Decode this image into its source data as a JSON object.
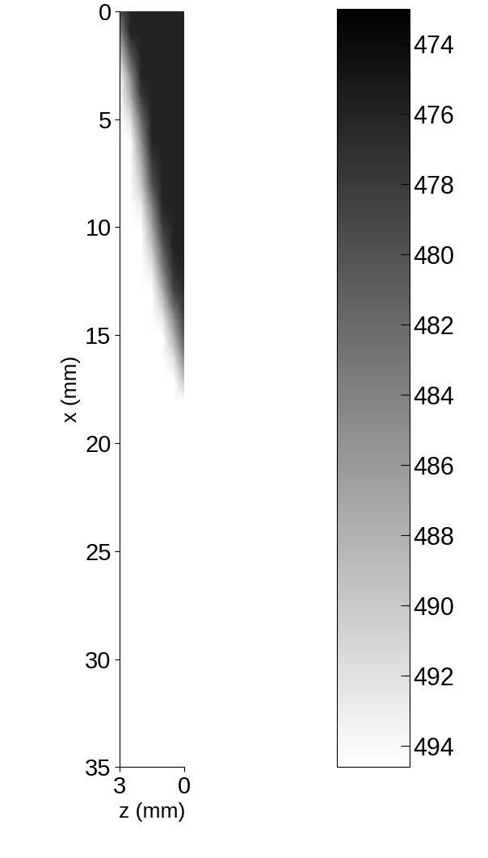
{
  "chart_data": {
    "type": "heatmap",
    "x_label": "z (mm)",
    "y_label": "x (mm)",
    "x": [
      0,
      0.5,
      1,
      1.5,
      2,
      2.5,
      3
    ],
    "y": [
      0,
      1,
      2,
      3,
      4,
      5,
      6,
      7,
      8,
      9,
      10,
      11,
      12,
      13,
      14,
      15,
      16,
      17,
      18,
      19,
      20,
      21,
      22,
      23,
      24,
      25,
      26,
      27,
      28,
      29,
      30,
      31,
      32,
      33,
      34,
      35
    ],
    "cells": [
      [
        476,
        476,
        476,
        476,
        476,
        476,
        480
      ],
      [
        476,
        476,
        476,
        476,
        476,
        476,
        485
      ],
      [
        476,
        476,
        476,
        476,
        476,
        480,
        490
      ],
      [
        476,
        476,
        476,
        476,
        476,
        485,
        495
      ],
      [
        476,
        476,
        476,
        476,
        478,
        488,
        495
      ],
      [
        476,
        476,
        476,
        476,
        482,
        492,
        495
      ],
      [
        476,
        476,
        476,
        476,
        485,
        495,
        495
      ],
      [
        476,
        476,
        476,
        478,
        488,
        495,
        495
      ],
      [
        476,
        476,
        476,
        480,
        490,
        495,
        495
      ],
      [
        476,
        476,
        476,
        484,
        493,
        495,
        495
      ],
      [
        476,
        476,
        478,
        487,
        495,
        495,
        495
      ],
      [
        476,
        476,
        481,
        490,
        495,
        495,
        495
      ],
      [
        476,
        477,
        484,
        493,
        495,
        495,
        495
      ],
      [
        477,
        479,
        488,
        495,
        495,
        495,
        495
      ],
      [
        478,
        484,
        492,
        495,
        495,
        495,
        495
      ],
      [
        480,
        488,
        495,
        495,
        495,
        495,
        495
      ],
      [
        484,
        492,
        495,
        495,
        495,
        495,
        495
      ],
      [
        489,
        495,
        495,
        495,
        495,
        495,
        495
      ],
      [
        495,
        495,
        495,
        495,
        495,
        495,
        495
      ],
      [
        495,
        495,
        495,
        495,
        495,
        495,
        495
      ],
      [
        495,
        495,
        495,
        495,
        495,
        495,
        495
      ],
      [
        495,
        495,
        495,
        495,
        495,
        495,
        495
      ],
      [
        495,
        495,
        495,
        495,
        495,
        495,
        495
      ],
      [
        495,
        495,
        495,
        495,
        495,
        495,
        495
      ],
      [
        495,
        495,
        495,
        495,
        495,
        495,
        495
      ],
      [
        495,
        495,
        495,
        495,
        495,
        495,
        495
      ],
      [
        495,
        495,
        495,
        495,
        495,
        495,
        495
      ],
      [
        495,
        495,
        495,
        495,
        495,
        495,
        495
      ],
      [
        495,
        495,
        495,
        495,
        495,
        495,
        495
      ],
      [
        495,
        495,
        495,
        495,
        495,
        495,
        495
      ],
      [
        495,
        495,
        495,
        495,
        495,
        495,
        495
      ],
      [
        495,
        495,
        495,
        495,
        495,
        495,
        495
      ],
      [
        495,
        495,
        495,
        495,
        495,
        495,
        495
      ],
      [
        495,
        495,
        495,
        495,
        495,
        495,
        495
      ],
      [
        495,
        495,
        495,
        495,
        495,
        495,
        495
      ],
      [
        495,
        495,
        495,
        495,
        495,
        495,
        495
      ]
    ],
    "xlim": [
      3,
      0
    ],
    "ylim": [
      35,
      0
    ],
    "xticks": [
      3,
      0
    ],
    "yticks": [
      0,
      5,
      10,
      15,
      20,
      25,
      30,
      35
    ],
    "colorbar_range": [
      473,
      494.6
    ],
    "colorbar_ticks": [
      474,
      476,
      478,
      480,
      482,
      484,
      486,
      488,
      490,
      492,
      494
    ]
  }
}
